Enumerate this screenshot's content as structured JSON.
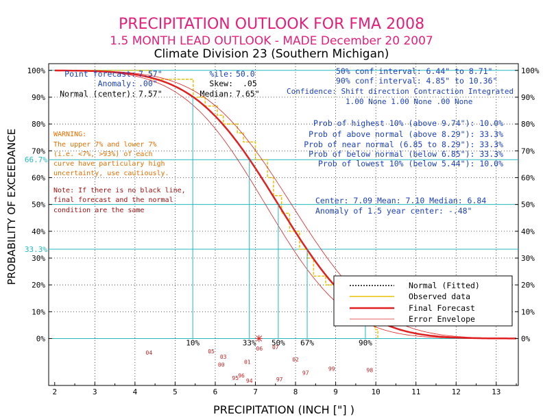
{
  "chart_data": {
    "type": "line",
    "title": "PRECIPITATION OUTLOOK FOR FMA 2008",
    "subtitle": "1.5 MONTH LEAD OUTLOOK  - MADE December 20 2007",
    "subtitle2": "Climate Division 23 (Southern Michigan)",
    "xlabel": "PRECIPITATION (INCH [\"] )",
    "ylabel": "PROBABILITY OF EXCEEDANCE",
    "xlim": [
      1.85,
      13.55
    ],
    "ylim": [
      -17.5,
      102.5
    ],
    "x_ticks": [
      "2",
      "3",
      "4",
      "5",
      "6",
      "7",
      "8",
      "9",
      "10",
      "11",
      "12",
      "13"
    ],
    "y_ticks": [
      "0%",
      "10%",
      "20%",
      "30%",
      "40%",
      "50%",
      "60%",
      "70%",
      "80%",
      "90%",
      "100%"
    ],
    "y_ticks_right": [
      "0%",
      "10%",
      "20%",
      "30%",
      "40%",
      "50%",
      "60%",
      "70%",
      "80%",
      "90%",
      "100%"
    ],
    "h_ref_lines": [
      {
        "value": 0,
        "label": ""
      },
      {
        "value": 33.3,
        "label": "33.3%"
      },
      {
        "value": 50,
        "label": ""
      },
      {
        "value": 66.7,
        "label": "66.7%"
      },
      {
        "value": 100,
        "label": ""
      }
    ],
    "stats": {
      "point_forecast_label": "Point forecast:",
      "point_forecast": "7.57\"",
      "anomaly_label": "Anomaly:",
      "anomaly": ".00\"",
      "normal_label": "Normal (center):",
      "normal": "7.57\"",
      "ile_label": "%ile:",
      "ile": "50.0",
      "skew_label": "Skew:",
      "skew": ".05",
      "median_label": "Median:",
      "median": "7.65\"",
      "ci50": "50% conf interval: 6.44\" to 8.71\"",
      "ci90": "90% conf interval: 4.85\" to 10.36\"",
      "confidence_header": "Confidence: Shift direction   Contraction   Integrated",
      "confidence_values": "1.00 None       1.00 None      .00 None",
      "prob_highest": "Prob of highest 10% (above 9.74\"): 10.0%",
      "prob_above": "Prob of above normal (above 8.29\"): 33.3%",
      "prob_near": "Prob of near normal (6.85 to 8.29\"): 33.3%",
      "prob_below": "Prob of below normal (below 6.85\"): 33.3%",
      "prob_lowest": "Prob of lowest 10% (below 5.44\"): 10.0%",
      "center_line": "Center: 7.09 Mean: 7.10 Median: 6.84",
      "anomaly_center": "Anomaly of 1.5 year center: -.48\""
    },
    "warning": [
      "WARNING:",
      "The upper 7% and lower 7%",
      "(i.e. <7%, >93%) of each",
      "curve have particulary high",
      "uncertainty, use cautiously."
    ],
    "note": [
      "Note: If there is no black line,",
      "final forecast and the normal",
      "condition are the same"
    ],
    "legend": [
      {
        "name": "Normal (Fitted)",
        "color": "#000000",
        "style": "dotted"
      },
      {
        "name": "Observed data",
        "color": "#e8c000",
        "style": "solid"
      },
      {
        "name": "Final Forecast",
        "color": "#e02020",
        "style": "thick"
      },
      {
        "name": "Error Envelope",
        "color": "#e02020",
        "style": "thin"
      }
    ],
    "percentile_markers": [
      {
        "label": "10%",
        "x": 5.44,
        "y": 90
      },
      {
        "label": "33%",
        "x": 6.85,
        "y": 66.7
      },
      {
        "label": "50%",
        "x": 7.57,
        "y": 50
      },
      {
        "label": "67%",
        "x": 8.29,
        "y": 33.3
      },
      {
        "label": "90%",
        "x": 9.74,
        "y": 10
      }
    ],
    "forecast_point": {
      "x": 7.09,
      "y": 0
    },
    "series": [
      {
        "name": "Final Forecast",
        "mu": 7.57,
        "sigma": 1.65
      },
      {
        "name": "Error Envelope Upper",
        "mu": 7.9,
        "sigma": 1.7
      },
      {
        "name": "Error Envelope Lower",
        "mu": 7.25,
        "sigma": 1.6
      }
    ],
    "observed_steps": [
      [
        2.0,
        100
      ],
      [
        4.4,
        100
      ],
      [
        4.4,
        96.7
      ],
      [
        5.45,
        96.7
      ],
      [
        5.45,
        90
      ],
      [
        5.75,
        90
      ],
      [
        5.75,
        86.7
      ],
      [
        6.05,
        86.7
      ],
      [
        6.05,
        83.3
      ],
      [
        6.2,
        83.3
      ],
      [
        6.2,
        80
      ],
      [
        6.55,
        80
      ],
      [
        6.55,
        76.7
      ],
      [
        6.7,
        76.7
      ],
      [
        6.7,
        73.3
      ],
      [
        7.0,
        73.3
      ],
      [
        7.0,
        66.7
      ],
      [
        7.3,
        66.7
      ],
      [
        7.3,
        60
      ],
      [
        7.45,
        60
      ],
      [
        7.45,
        53.3
      ],
      [
        7.65,
        53.3
      ],
      [
        7.65,
        46.7
      ],
      [
        7.85,
        46.7
      ],
      [
        7.85,
        40
      ],
      [
        8.1,
        40
      ],
      [
        8.1,
        33.3
      ],
      [
        8.3,
        33.3
      ],
      [
        8.3,
        30
      ],
      [
        8.45,
        30
      ],
      [
        8.45,
        23.3
      ],
      [
        8.75,
        23.3
      ],
      [
        8.75,
        20
      ],
      [
        9.0,
        20
      ],
      [
        9.0,
        16.7
      ],
      [
        9.1,
        16.7
      ],
      [
        9.1,
        13.3
      ],
      [
        9.8,
        13.3
      ],
      [
        9.8,
        10
      ],
      [
        9.95,
        10
      ],
      [
        9.95,
        6.7
      ],
      [
        9.98,
        6.7
      ],
      [
        9.98,
        3.3
      ],
      [
        10.05,
        3.3
      ],
      [
        10.05,
        0
      ]
    ],
    "year_labels": [
      {
        "label": "04",
        "x": 4.35,
        "y": -6
      },
      {
        "label": "05",
        "x": 5.9,
        "y": -5.5
      },
      {
        "label": "03",
        "x": 6.2,
        "y": -7.5
      },
      {
        "label": "00",
        "x": 6.15,
        "y": -10.5
      },
      {
        "label": "01",
        "x": 6.8,
        "y": -9.5
      },
      {
        "label": "02",
        "x": 8.0,
        "y": -8.5
      },
      {
        "label": "06",
        "x": 7.1,
        "y": -4.5
      },
      {
        "label": "07",
        "x": 7.5,
        "y": -4
      },
      {
        "label": "96",
        "x": 6.65,
        "y": -14.5
      },
      {
        "label": "95",
        "x": 6.5,
        "y": -15.5
      },
      {
        "label": "94",
        "x": 6.85,
        "y": -16.5
      },
      {
        "label": "97",
        "x": 7.6,
        "y": -16
      },
      {
        "label": "97",
        "x": 8.25,
        "y": -13.5
      },
      {
        "label": "99",
        "x": 8.9,
        "y": -12
      },
      {
        "label": "98",
        "x": 9.85,
        "y": -12.5
      }
    ]
  }
}
